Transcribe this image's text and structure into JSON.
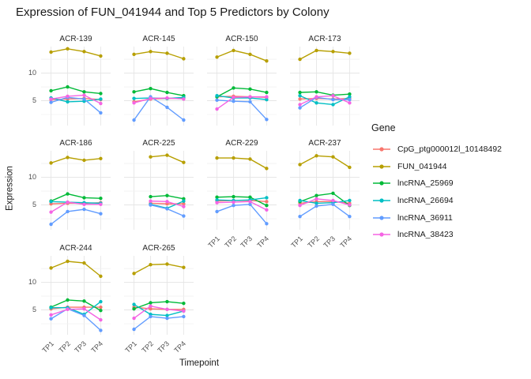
{
  "title": "Expression of FUN_041944 and Top 5 Predictors by Colony",
  "axes": {
    "x_title": "Timepoint",
    "y_title": "Expression",
    "x_tick_labels": [
      "TP1",
      "TP2",
      "TP3",
      "TP4"
    ],
    "y_tick_values": [
      5,
      10
    ]
  },
  "legend": {
    "title": "Gene"
  },
  "chart_data": {
    "type": "line",
    "facet_variable": "Colony",
    "x": [
      "TP1",
      "TP2",
      "TP3",
      "TP4"
    ],
    "ylim": [
      0.5,
      14.8
    ],
    "grid": "on",
    "legend_position": "right",
    "minor_gridlines": [
      2.5,
      7.5,
      12.5
    ],
    "major_gridlines": [
      5,
      10
    ],
    "series_meta": [
      {
        "name": "CpG_ptg000012l_10148492",
        "color": "#F8766D"
      },
      {
        "name": "FUN_041944",
        "color": "#B79F00"
      },
      {
        "name": "lncRNA_25969",
        "color": "#00BA38"
      },
      {
        "name": "lncRNA_26694",
        "color": "#00BFC4"
      },
      {
        "name": "lncRNA_36911",
        "color": "#619CFF"
      },
      {
        "name": "lncRNA_38423",
        "color": "#F564E3"
      }
    ],
    "facets": [
      {
        "colony": "ACR-139",
        "series": [
          [
            5.2,
            5.3,
            5.4,
            5.2
          ],
          [
            13.8,
            14.4,
            13.9,
            13.1
          ],
          [
            6.8,
            7.5,
            6.6,
            6.3
          ],
          [
            5.5,
            4.8,
            4.9,
            5.3
          ],
          [
            4.7,
            5.6,
            5.3,
            2.8
          ],
          [
            5.3,
            5.8,
            6.0,
            4.5
          ]
        ]
      },
      {
        "colony": "ACR-145",
        "series": [
          [
            4.8,
            5.3,
            5.4,
            5.4
          ],
          [
            13.4,
            13.9,
            13.6,
            12.6
          ],
          [
            6.6,
            7.2,
            6.5,
            5.9
          ],
          [
            5.4,
            5.5,
            5.4,
            5.6
          ],
          [
            1.5,
            5.7,
            3.8,
            1.5
          ],
          [
            4.6,
            5.4,
            5.5,
            5.3
          ]
        ]
      },
      {
        "colony": "ACR-150",
        "series": [
          [
            5.7,
            5.8,
            5.7,
            5.6
          ],
          [
            12.9,
            14.1,
            13.4,
            12.2
          ],
          [
            5.7,
            7.3,
            7.1,
            6.5
          ],
          [
            5.9,
            5.5,
            5.5,
            5.2
          ],
          [
            5.1,
            4.9,
            4.8,
            1.6
          ],
          [
            3.5,
            5.6,
            5.7,
            5.7
          ]
        ]
      },
      {
        "colony": "ACR-173",
        "series": [
          [
            5.3,
            5.4,
            5.3,
            5.4
          ],
          [
            12.5,
            14.1,
            13.9,
            13.6
          ],
          [
            6.5,
            6.6,
            6.0,
            6.2
          ],
          [
            5.9,
            4.6,
            4.3,
            5.7
          ],
          [
            3.7,
            5.6,
            5.2,
            5.2
          ],
          [
            4.3,
            5.7,
            5.9,
            4.6
          ]
        ]
      },
      {
        "colony": "ACR-186",
        "series": [
          [
            5.2,
            5.3,
            5.3,
            5.4
          ],
          [
            12.6,
            13.6,
            13.1,
            13.4
          ],
          [
            5.7,
            7.0,
            6.3,
            6.2
          ],
          [
            5.6,
            5.5,
            5.4,
            5.3
          ],
          [
            1.5,
            3.8,
            4.2,
            3.4
          ],
          [
            3.7,
            5.5,
            5.1,
            5.1
          ]
        ]
      },
      {
        "colony": "ACR-225",
        "series": [
          [
            null,
            5.3,
            5.2,
            5.2
          ],
          [
            null,
            13.7,
            14.0,
            12.7
          ],
          [
            null,
            6.5,
            6.7,
            6.1
          ],
          [
            null,
            5.1,
            4.4,
            5.7
          ],
          [
            null,
            5.0,
            4.3,
            3.0
          ],
          [
            null,
            5.7,
            5.6,
            4.7
          ]
        ]
      },
      {
        "colony": "ACR-229",
        "series": [
          [
            5.7,
            5.8,
            5.8,
            5.6
          ],
          [
            13.5,
            13.5,
            13.3,
            11.6
          ],
          [
            6.4,
            6.5,
            6.4,
            4.9
          ],
          [
            5.9,
            5.8,
            5.9,
            6.3
          ],
          [
            3.8,
            4.9,
            5.1,
            1.6
          ],
          [
            5.4,
            5.5,
            5.6,
            4.1
          ]
        ]
      },
      {
        "colony": "ACR-237",
        "series": [
          [
            5.3,
            5.6,
            5.6,
            5.3
          ],
          [
            12.3,
            13.9,
            13.7,
            11.8
          ],
          [
            5.6,
            6.7,
            7.1,
            4.9
          ],
          [
            5.8,
            5.3,
            5.4,
            5.8
          ],
          [
            2.9,
            4.8,
            5.1,
            2.9
          ],
          [
            4.9,
            6.1,
            5.8,
            5.0
          ]
        ]
      },
      {
        "colony": "ACR-244",
        "series": [
          [
            5.2,
            5.5,
            5.5,
            5.5
          ],
          [
            12.6,
            13.8,
            13.5,
            11.1
          ],
          [
            5.5,
            6.8,
            6.6,
            4.9
          ],
          [
            5.4,
            5.4,
            4.2,
            6.5
          ],
          [
            3.4,
            5.2,
            4.0,
            1.3
          ],
          [
            4.1,
            5.1,
            5.2,
            3.2
          ]
        ]
      },
      {
        "colony": "ACR-265",
        "series": [
          [
            5.5,
            5.2,
            5.1,
            5.1
          ],
          [
            11.6,
            13.2,
            13.3,
            12.7
          ],
          [
            5.2,
            6.3,
            6.5,
            6.2
          ],
          [
            6.0,
            4.2,
            4.0,
            4.8
          ],
          [
            1.5,
            3.8,
            3.5,
            3.8
          ],
          [
            3.5,
            5.7,
            5.1,
            4.8
          ]
        ]
      }
    ]
  }
}
